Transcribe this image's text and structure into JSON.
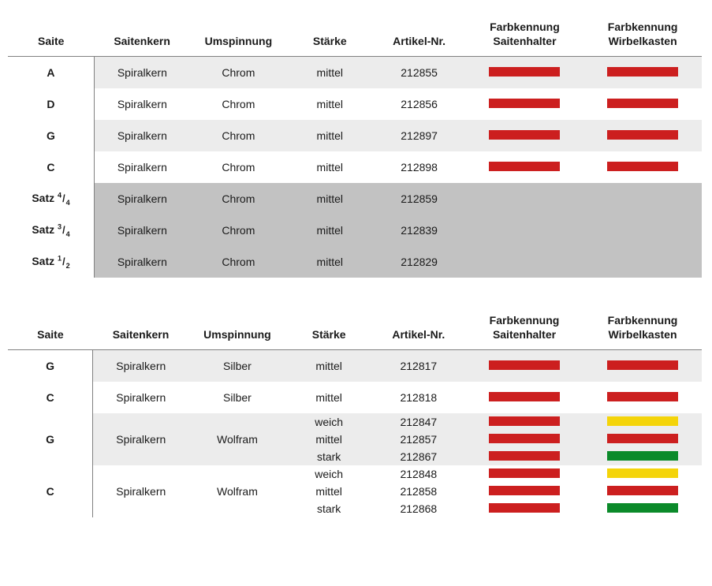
{
  "columns": {
    "saite": "Saite",
    "saitenkern": "Saitenkern",
    "umspinnung": "Umspinnung",
    "staerke": "Stärke",
    "artikel": "Artikel-Nr.",
    "fk_halter": "Farbkennung\nSaitenhalter",
    "fk_wirbel": "Farbkennung\nWirbelkasten"
  },
  "colors": {
    "red": "#cc1f1f",
    "yellow": "#f4d40a",
    "green": "#0b8a2a",
    "row_light": "#ececec",
    "row_dark": "#c2c2c2",
    "row_white": "#ffffff"
  },
  "table1": {
    "rows": [
      {
        "saite": "A",
        "kern": "Spiralkern",
        "umsp": "Chrom",
        "stk": "mittel",
        "art": "212855",
        "c1": "red",
        "c2": "red",
        "bg": "l"
      },
      {
        "saite": "D",
        "kern": "Spiralkern",
        "umsp": "Chrom",
        "stk": "mittel",
        "art": "212856",
        "c1": "red",
        "c2": "red",
        "bg": "w"
      },
      {
        "saite": "G",
        "kern": "Spiralkern",
        "umsp": "Chrom",
        "stk": "mittel",
        "art": "212897",
        "c1": "red",
        "c2": "red",
        "bg": "l"
      },
      {
        "saite": "C",
        "kern": "Spiralkern",
        "umsp": "Chrom",
        "stk": "mittel",
        "art": "212898",
        "c1": "red",
        "c2": "red",
        "bg": "w"
      },
      {
        "saite_frac": [
          "Satz ",
          "4",
          "4"
        ],
        "kern": "Spiralkern",
        "umsp": "Chrom",
        "stk": "mittel",
        "art": "212859",
        "c1": null,
        "c2": null,
        "bg": "d"
      },
      {
        "saite_frac": [
          "Satz ",
          "3",
          "4"
        ],
        "kern": "Spiralkern",
        "umsp": "Chrom",
        "stk": "mittel",
        "art": "212839",
        "c1": null,
        "c2": null,
        "bg": "d"
      },
      {
        "saite_frac": [
          "Satz ",
          "1",
          "2"
        ],
        "kern": "Spiralkern",
        "umsp": "Chrom",
        "stk": "mittel",
        "art": "212829",
        "c1": null,
        "c2": null,
        "bg": "d"
      }
    ]
  },
  "table2": {
    "rows": [
      {
        "saite": "G",
        "kern": "Spiralkern",
        "umsp": "Silber",
        "bg": "l",
        "sub": [
          {
            "stk": "mittel",
            "art": "212817",
            "c1": "red",
            "c2": "red"
          }
        ]
      },
      {
        "saite": "C",
        "kern": "Spiralkern",
        "umsp": "Silber",
        "bg": "w",
        "sub": [
          {
            "stk": "mittel",
            "art": "212818",
            "c1": "red",
            "c2": "red"
          }
        ]
      },
      {
        "saite": "G",
        "kern": "Spiralkern",
        "umsp": "Wolfram",
        "bg": "l",
        "sub": [
          {
            "stk": "weich",
            "art": "212847",
            "c1": "red",
            "c2": "yellow"
          },
          {
            "stk": "mittel",
            "art": "212857",
            "c1": "red",
            "c2": "red"
          },
          {
            "stk": "stark",
            "art": "212867",
            "c1": "red",
            "c2": "green"
          }
        ]
      },
      {
        "saite": "C",
        "kern": "Spiralkern",
        "umsp": "Wolfram",
        "bg": "w",
        "sub": [
          {
            "stk": "weich",
            "art": "212848",
            "c1": "red",
            "c2": "yellow"
          },
          {
            "stk": "mittel",
            "art": "212858",
            "c1": "red",
            "c2": "red"
          },
          {
            "stk": "stark",
            "art": "212868",
            "c1": "red",
            "c2": "green"
          }
        ]
      }
    ]
  }
}
